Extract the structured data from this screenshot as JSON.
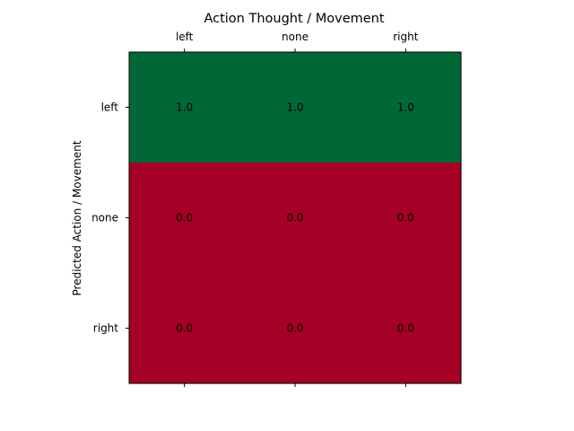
{
  "chart_data": {
    "type": "heatmap",
    "title": "Action Thought / Movement",
    "xlabel": "",
    "ylabel": "Predicted Action / Movement",
    "x_categories": [
      "left",
      "none",
      "right"
    ],
    "y_categories": [
      "left",
      "none",
      "right"
    ],
    "x_tick_position": "top",
    "values": [
      [
        1.0,
        1.0,
        1.0
      ],
      [
        0.0,
        0.0,
        0.0
      ],
      [
        0.0,
        0.0,
        0.0
      ]
    ],
    "value_labels": [
      [
        "1.0",
        "1.0",
        "1.0"
      ],
      [
        "0.0",
        "0.0",
        "0.0"
      ],
      [
        "0.0",
        "0.0",
        "0.0"
      ]
    ],
    "colormap": {
      "low": "#a50026",
      "high": "#006837"
    },
    "vmin": 0.0,
    "vmax": 1.0,
    "grid": false
  }
}
